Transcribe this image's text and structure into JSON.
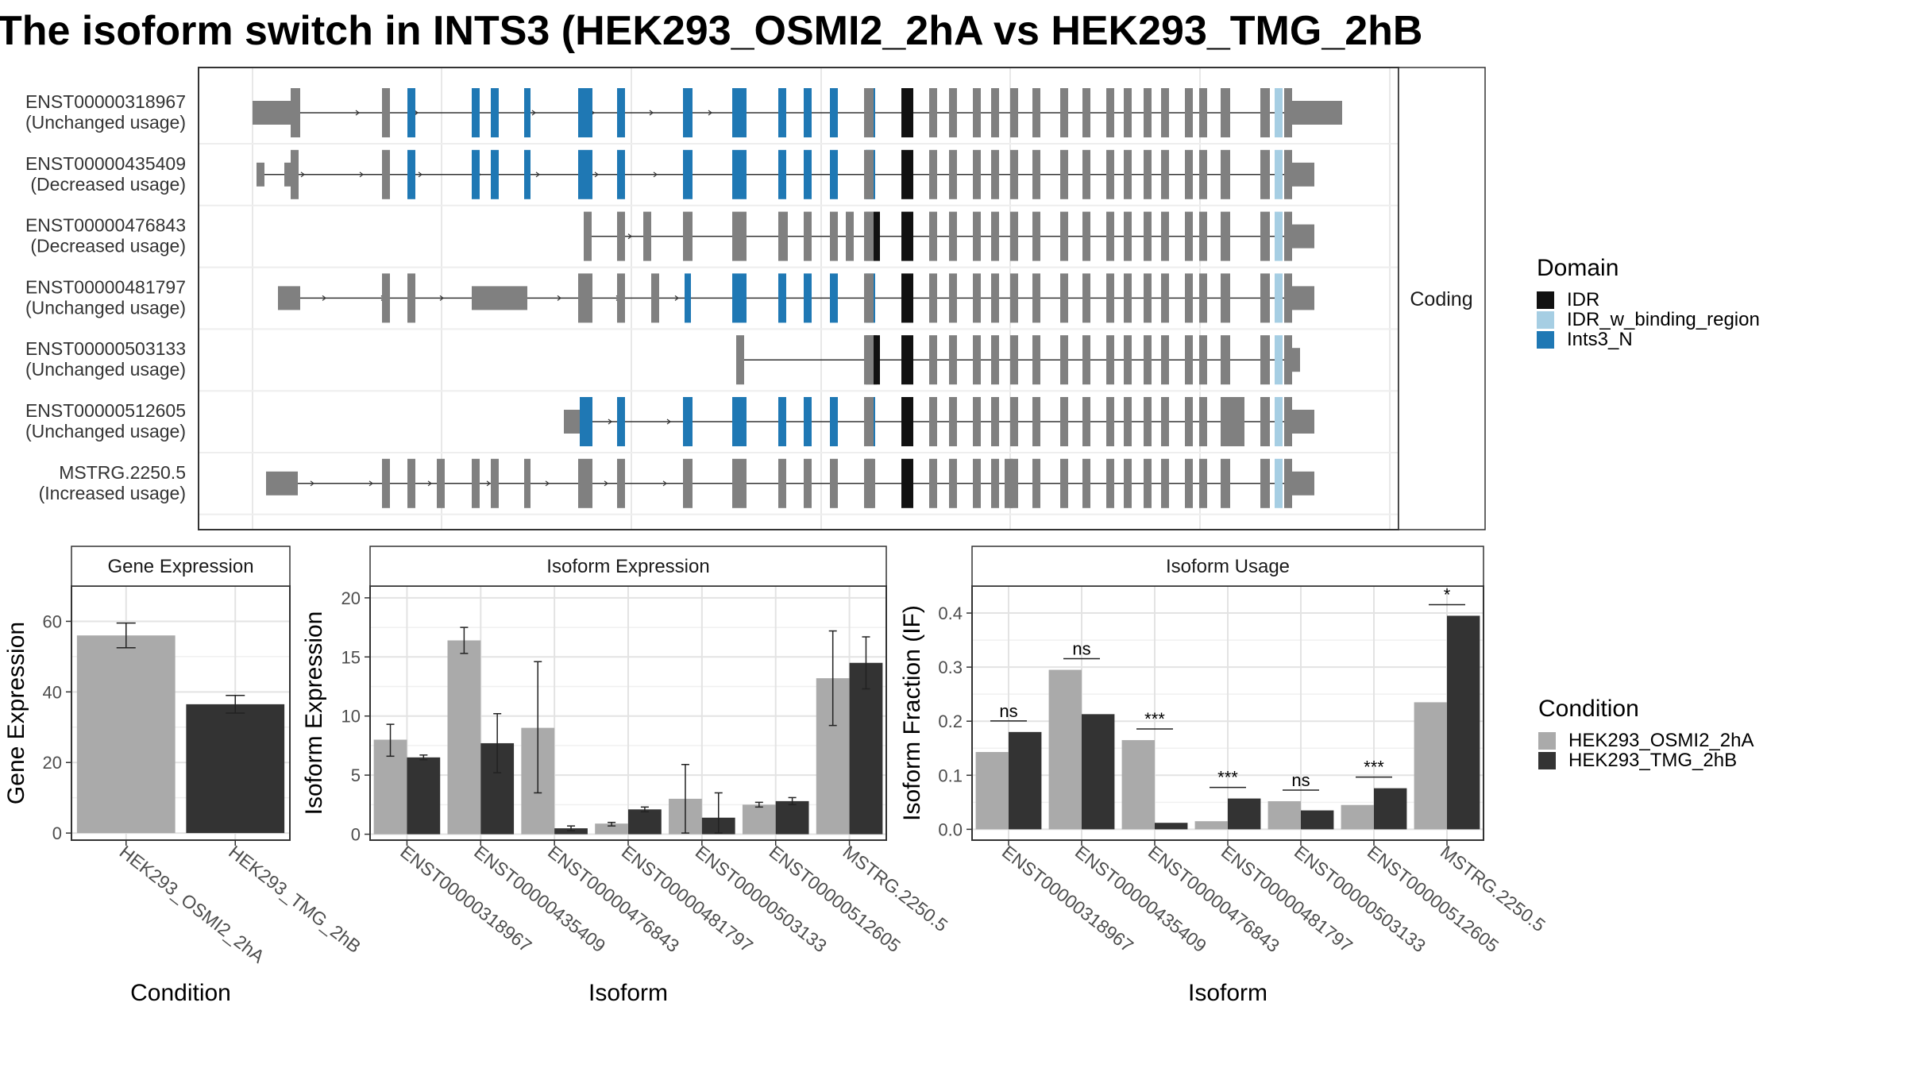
{
  "title": "The isoform switch in INTS3 (HEK293_OSMI2_2hA vs HEK293_TMG_2hB",
  "colors": {
    "cond_a": "#aaaaaa",
    "cond_b": "#333333",
    "exon": "#808080",
    "idr": "#111111",
    "idr_binding": "#a6cee3",
    "ints3_n": "#1f78b4",
    "panel_border": "#333333",
    "strip_bg": "#ffffff",
    "grid_major": "#e3e3e3",
    "grid_minor": "#f0f0f0"
  },
  "chart_data": [
    {
      "type": "gene-structure",
      "facet_label": "Coding",
      "legend": {
        "title": "Domain",
        "items": [
          {
            "name": "IDR",
            "color": "#111111"
          },
          {
            "name": "IDR_w_binding_region",
            "color": "#a6cee3"
          },
          {
            "name": "Ints3_N",
            "color": "#1f78b4"
          }
        ]
      },
      "transcripts": [
        {
          "id": "ENST00000318967",
          "status": "(Unchanged usage)"
        },
        {
          "id": "ENST00000435409",
          "status": "(Decreased usage)"
        },
        {
          "id": "ENST00000476843",
          "status": "(Decreased usage)"
        },
        {
          "id": "ENST00000481797",
          "status": "(Unchanged usage)"
        },
        {
          "id": "ENST00000503133",
          "status": "(Unchanged usage)"
        },
        {
          "id": "ENST00000512605",
          "status": "(Unchanged usage)"
        },
        {
          "id": "MSTRG.2250.5",
          "status": "(Increased usage)"
        }
      ]
    },
    {
      "type": "bar",
      "title": "Gene Expression",
      "xlabel": "Condition",
      "ylabel": "Gene Expression",
      "ylim": [
        -2,
        70
      ],
      "yticks": [
        0,
        20,
        40,
        60
      ],
      "categories": [
        "HEK293_OSMI2_2hA",
        "HEK293_TMG_2hB"
      ],
      "values": [
        56,
        36.5
      ],
      "err_low": [
        52.5,
        34
      ],
      "err_high": [
        59.5,
        39
      ]
    },
    {
      "type": "bar",
      "title": "Isoform Expression",
      "xlabel": "Isoform",
      "ylabel": "Isoform Expression",
      "ylim": [
        -0.5,
        21
      ],
      "yticks": [
        0,
        5,
        10,
        15,
        20
      ],
      "categories": [
        "ENST00000318967",
        "ENST00000435409",
        "ENST00000476843",
        "ENST00000481797",
        "ENST00000503133",
        "ENST00000512605",
        "MSTRG.2250.5"
      ],
      "series": [
        {
          "name": "HEK293_OSMI2_2hA",
          "values": [
            8,
            16.4,
            9,
            0.9,
            3,
            2.5,
            13.2
          ],
          "err_low": [
            6.6,
            15.3,
            3.5,
            0.7,
            0.1,
            2.3,
            9.2
          ],
          "err_high": [
            9.3,
            17.5,
            14.6,
            1.0,
            5.9,
            2.7,
            17.2
          ]
        },
        {
          "name": "HEK293_TMG_2hB",
          "values": [
            6.5,
            7.7,
            0.5,
            2.1,
            1.4,
            2.8,
            14.5
          ],
          "err_low": [
            6.3,
            5.2,
            0.3,
            1.9,
            0.1,
            2.5,
            12.3
          ],
          "err_high": [
            6.7,
            10.2,
            0.7,
            2.3,
            3.5,
            3.1,
            16.7
          ]
        }
      ]
    },
    {
      "type": "bar",
      "title": "Isoform Usage",
      "xlabel": "Isoform",
      "ylabel": "Isoform Fraction (IF)",
      "ylim": [
        -0.02,
        0.45
      ],
      "yticks": [
        0.0,
        0.1,
        0.2,
        0.3,
        0.4
      ],
      "yticklabels": [
        "0.0",
        "0.1",
        "0.2",
        "0.3",
        "0.4"
      ],
      "categories": [
        "ENST00000318967",
        "ENST00000435409",
        "ENST00000476843",
        "ENST00000481797",
        "ENST00000503133",
        "ENST00000512605",
        "MSTRG.2250.5"
      ],
      "series": [
        {
          "name": "HEK293_OSMI2_2hA",
          "values": [
            0.143,
            0.295,
            0.165,
            0.015,
            0.052,
            0.045,
            0.235
          ]
        },
        {
          "name": "HEK293_TMG_2hB",
          "values": [
            0.18,
            0.213,
            0.012,
            0.057,
            0.035,
            0.076,
            0.395
          ]
        }
      ],
      "significance": [
        "ns",
        "ns",
        "***",
        "***",
        "ns",
        "***",
        "*"
      ]
    }
  ],
  "condition_legend": {
    "title": "Condition",
    "items": [
      {
        "name": "HEK293_OSMI2_2hA",
        "color": "#aaaaaa"
      },
      {
        "name": "HEK293_TMG_2hB",
        "color": "#333333"
      }
    ]
  }
}
